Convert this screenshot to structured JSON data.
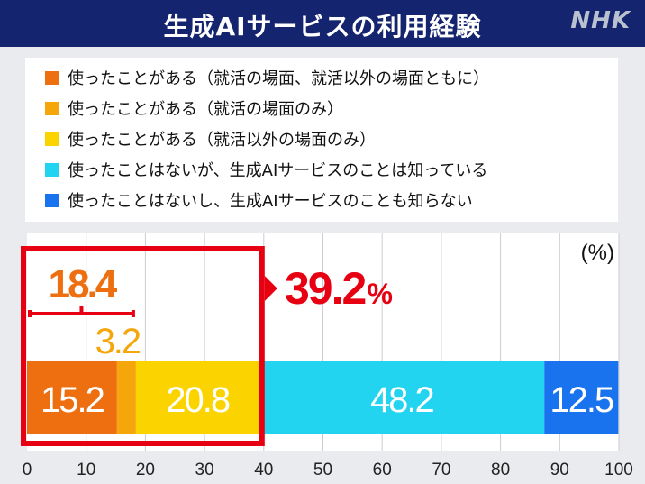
{
  "header": {
    "title": "生成AIサービスの利用経験",
    "logo": "NHK"
  },
  "legend": {
    "items": [
      {
        "label": "使ったことがある（就活の場面、就活以外の場面ともに）",
        "color": "#ee6f10"
      },
      {
        "label": "使ったことがある（就活の場面のみ）",
        "color": "#f5a60a"
      },
      {
        "label": "使ったことがある（就活以外の場面のみ）",
        "color": "#fbd400"
      },
      {
        "label": "使ったことはないが、生成AIサービスのことは知っている",
        "color": "#22d4f0"
      },
      {
        "label": "使ったことはないし、生成AIサービスのことも知らない",
        "color": "#1a73ee"
      }
    ]
  },
  "chart_data": {
    "type": "bar",
    "orientation": "horizontal",
    "stacked": true,
    "unit_label": "(%)",
    "xlim": [
      0,
      100
    ],
    "xticks": [
      0,
      10,
      20,
      30,
      40,
      50,
      60,
      70,
      80,
      90,
      100
    ],
    "series": [
      {
        "value": 15.2,
        "value_label": "15.2",
        "color": "#ee6f10"
      },
      {
        "value": 3.2,
        "value_label": "3.2",
        "color": "#f5a60a"
      },
      {
        "value": 20.8,
        "value_label": "20.8",
        "color": "#fbd400"
      },
      {
        "value": 48.2,
        "value_label": "48.2",
        "color": "#22d4f0"
      },
      {
        "value": 12.5,
        "value_label": "12.5",
        "color": "#1a73ee"
      }
    ],
    "annotations": {
      "bracket_value": "18.4",
      "total_value": "39.2",
      "total_unit": "%",
      "highlight_color": "#e60012"
    }
  }
}
